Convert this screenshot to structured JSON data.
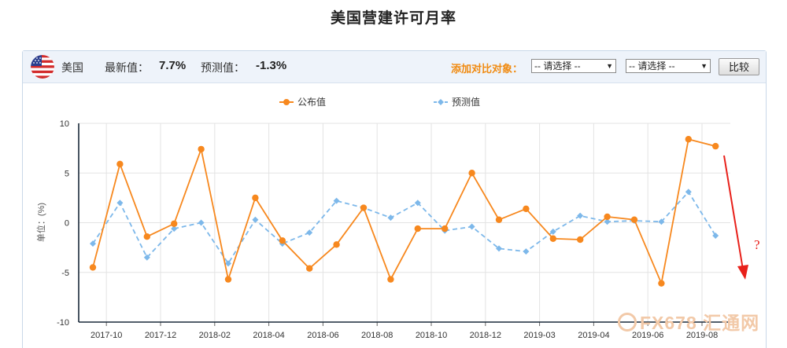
{
  "page_title": "美国营建许可月率",
  "header": {
    "country": "美国",
    "latest_label": "最新值：",
    "latest_value": "7.7%",
    "forecast_label": "预测值：",
    "forecast_value": "-1.3%",
    "compare_label": "添加对比对象：",
    "select1": "-- 请选择 --",
    "select2": "-- 请选择 --",
    "compare_button": "比较",
    "flag_icon": "us-flag-icon"
  },
  "annotation": {
    "mark": "?",
    "color": "#e8201a"
  },
  "watermark": "FX678 汇通网",
  "colors": {
    "published": "#f7881e",
    "forecast": "#7db8ea",
    "axis": "#1a2a3a",
    "grid": "#e3e3e3"
  },
  "chart_data": {
    "type": "line",
    "ylabel": "单位：(%)",
    "ylim": [
      -10,
      10
    ],
    "yticks": [
      10,
      5,
      0,
      -5,
      -10
    ],
    "x_tick_labels": [
      "2017-10",
      "2017-12",
      "2018-02",
      "2018-04",
      "2018-06",
      "2018-08",
      "2018-10",
      "2018-12",
      "2019-03",
      "2019-04",
      "2019-06",
      "2019-08"
    ],
    "x_tick_index": [
      0,
      2,
      4,
      6,
      8,
      10,
      12,
      14,
      16,
      18,
      20,
      22
    ],
    "legend_position": "top-center",
    "series": [
      {
        "name": "公布值",
        "values": [
          -4.5,
          5.9,
          -1.4,
          -0.1,
          7.4,
          -5.7,
          2.5,
          -1.8,
          -4.6,
          -2.2,
          1.5,
          -5.7,
          -0.6,
          -0.6,
          5.0,
          0.3,
          1.4,
          -1.6,
          -1.7,
          0.6,
          0.3,
          -6.1,
          8.4,
          7.7
        ]
      },
      {
        "name": "预测值",
        "values": [
          -2.1,
          2.0,
          -3.5,
          -0.6,
          0.0,
          -4.1,
          0.3,
          -2.1,
          -1.0,
          2.2,
          1.5,
          0.5,
          2.0,
          -0.8,
          -0.4,
          -2.6,
          -2.9,
          -0.9,
          0.7,
          0.1,
          0.2,
          0.1,
          3.1,
          -1.3
        ]
      }
    ]
  }
}
